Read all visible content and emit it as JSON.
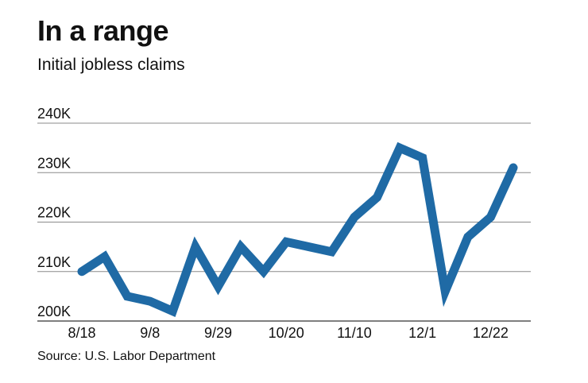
{
  "title": "In a range",
  "subtitle": "Initial jobless claims",
  "source": "Source: U.S. Labor Department",
  "chart_data": {
    "type": "line",
    "y_tick_labels": [
      "200K",
      "210K",
      "220K",
      "230K",
      "240K"
    ],
    "y_ticks": [
      200000,
      210000,
      220000,
      230000,
      240000
    ],
    "ylim": [
      200000,
      240000
    ],
    "x_tick_labels": [
      "8/18",
      "9/8",
      "9/29",
      "10/20",
      "11/10",
      "12/1",
      "12/22"
    ],
    "x_tick_index": [
      0,
      3,
      6,
      9,
      12,
      15,
      18
    ],
    "grid": true,
    "series": [
      {
        "color": "#1f6aa5",
        "values": [
          210000,
          213000,
          205000,
          204000,
          202000,
          215000,
          207000,
          215000,
          210000,
          216000,
          215000,
          214000,
          221000,
          225000,
          235000,
          233000,
          206000,
          217000,
          221000,
          231000
        ]
      }
    ]
  }
}
